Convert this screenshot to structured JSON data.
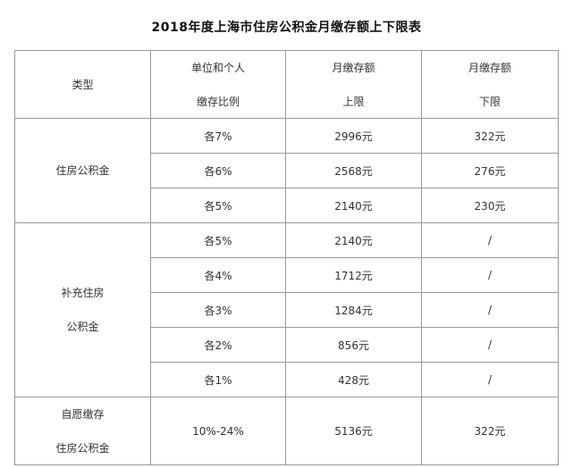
{
  "title": "2018年度上海市住房公积金月缴存额上下限表",
  "header": {
    "type": "类型",
    "ratio_line1": "单位和个人",
    "ratio_line2": "缴存比例",
    "upper_line1": "月缴存额",
    "upper_line2": "上限",
    "lower_line1": "月缴存额",
    "lower_line2": "下限"
  },
  "groups": [
    {
      "label_line1": "住房公积金",
      "rows": [
        {
          "ratio": "各7%",
          "upper": "2996元",
          "lower": "322元"
        },
        {
          "ratio": "各6%",
          "upper": "2568元",
          "lower": "276元"
        },
        {
          "ratio": "各5%",
          "upper": "2140元",
          "lower": "230元"
        }
      ]
    },
    {
      "label_line1": "补充住房",
      "label_line2": "公积金",
      "rows": [
        {
          "ratio": "各5%",
          "upper": "2140元",
          "lower": "/"
        },
        {
          "ratio": "各4%",
          "upper": "1712元",
          "lower": "/"
        },
        {
          "ratio": "各3%",
          "upper": "1284元",
          "lower": "/"
        },
        {
          "ratio": "各2%",
          "upper": "856元",
          "lower": "/"
        },
        {
          "ratio": "各1%",
          "upper": "428元",
          "lower": "/"
        }
      ]
    },
    {
      "label_line1": "自愿缴存",
      "label_line2": "住房公积金",
      "rows": [
        {
          "ratio": "10%-24%",
          "upper": "5136元",
          "lower": "322元"
        }
      ]
    }
  ]
}
